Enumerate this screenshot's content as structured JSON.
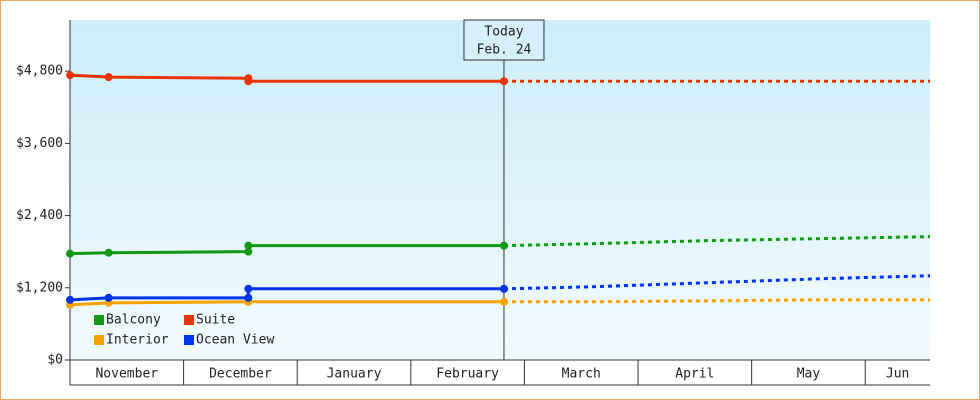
{
  "chart_data": {
    "type": "line",
    "x": [
      0,
      0.34,
      1.57,
      1.57,
      3.82,
      4.6,
      5.6,
      6.6,
      7.57
    ],
    "xlim": [
      0,
      7.57
    ],
    "categories": [
      "November",
      "December",
      "January",
      "February",
      "March",
      "April",
      "May",
      "Jun"
    ],
    "today": {
      "x": 3.82,
      "label": "Today",
      "date": "Feb. 24"
    },
    "ylim": [
      0,
      5650
    ],
    "yticks": [
      {
        "value": 0,
        "label": "$0"
      },
      {
        "value": 1200,
        "label": "$1,200"
      },
      {
        "value": 2400,
        "label": "$2,400"
      },
      {
        "value": 3600,
        "label": "$3,600"
      },
      {
        "value": 4800,
        "label": "$4,800"
      }
    ],
    "series": [
      {
        "name": "Balcony",
        "color": "#119911",
        "values": [
          1767,
          1783,
          1800,
          1900,
          1900,
          1933,
          1983,
          2017,
          2050
        ]
      },
      {
        "name": "Suite",
        "color": "#ee3300",
        "values": [
          4733,
          4700,
          4683,
          4633,
          4633,
          4633,
          4633,
          4633,
          4633
        ]
      },
      {
        "name": "Interior",
        "color": "#f5a300",
        "values": [
          917,
          950,
          967,
          967,
          967,
          967,
          983,
          1000,
          1000
        ]
      },
      {
        "name": "Ocean View",
        "color": "#0033ee",
        "values": [
          1000,
          1033,
          1033,
          1183,
          1183,
          1217,
          1283,
          1350,
          1400
        ]
      }
    ]
  }
}
